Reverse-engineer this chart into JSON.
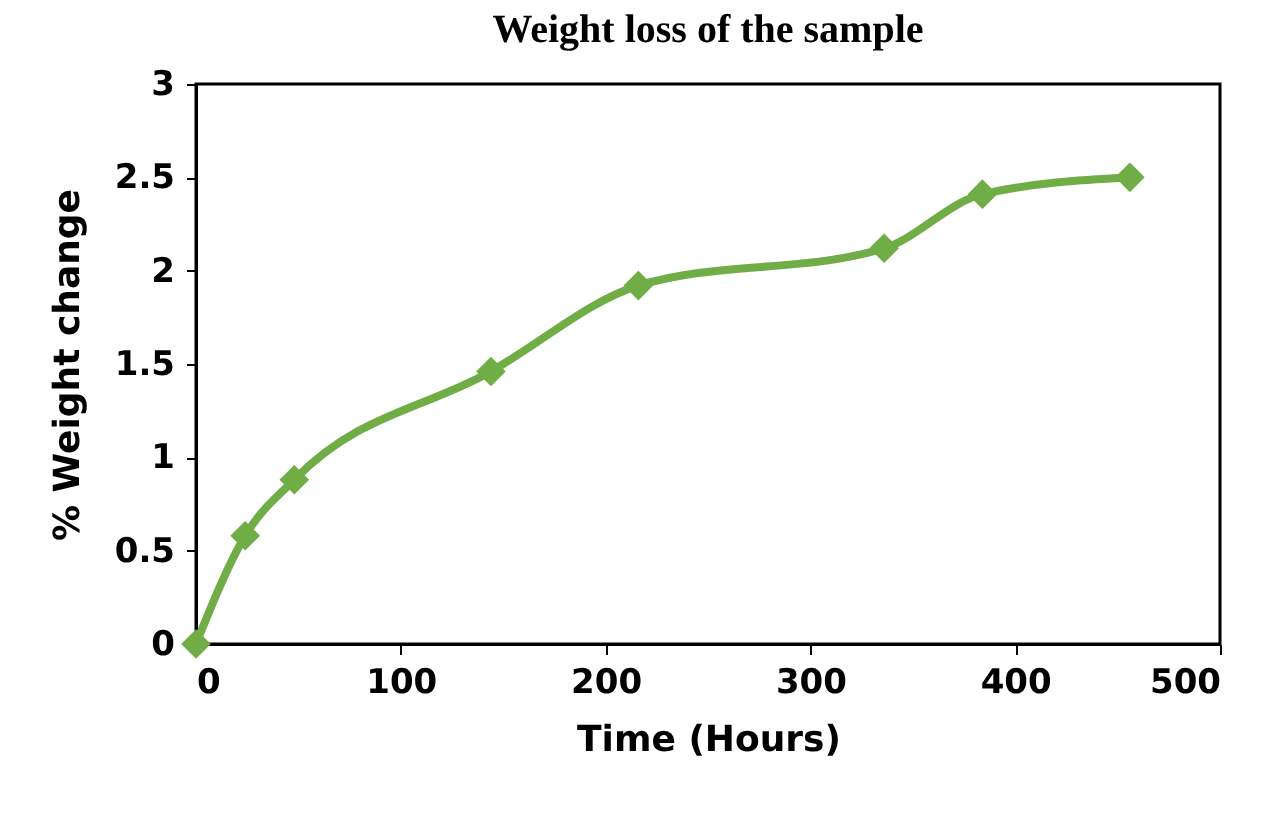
{
  "chart_data": {
    "type": "line",
    "title": "Weight loss of the sample",
    "xlabel": "Time (Hours)",
    "ylabel": "% Weight change",
    "x": [
      0,
      24,
      48,
      144,
      216,
      336,
      384,
      456
    ],
    "series": [
      {
        "color": "#70ad47",
        "values": [
          0,
          0.58,
          0.88,
          1.46,
          1.92,
          2.12,
          2.41,
          2.5
        ]
      }
    ],
    "xlim": [
      0,
      500
    ],
    "xticks": [
      0,
      100,
      200,
      300,
      400,
      500
    ],
    "ylim": [
      0,
      3
    ],
    "yticks": [
      0,
      0.5,
      1,
      1.5,
      2,
      2.5,
      3
    ],
    "grid": false,
    "legend": false,
    "marker": "diamond",
    "line_style": "solid"
  }
}
